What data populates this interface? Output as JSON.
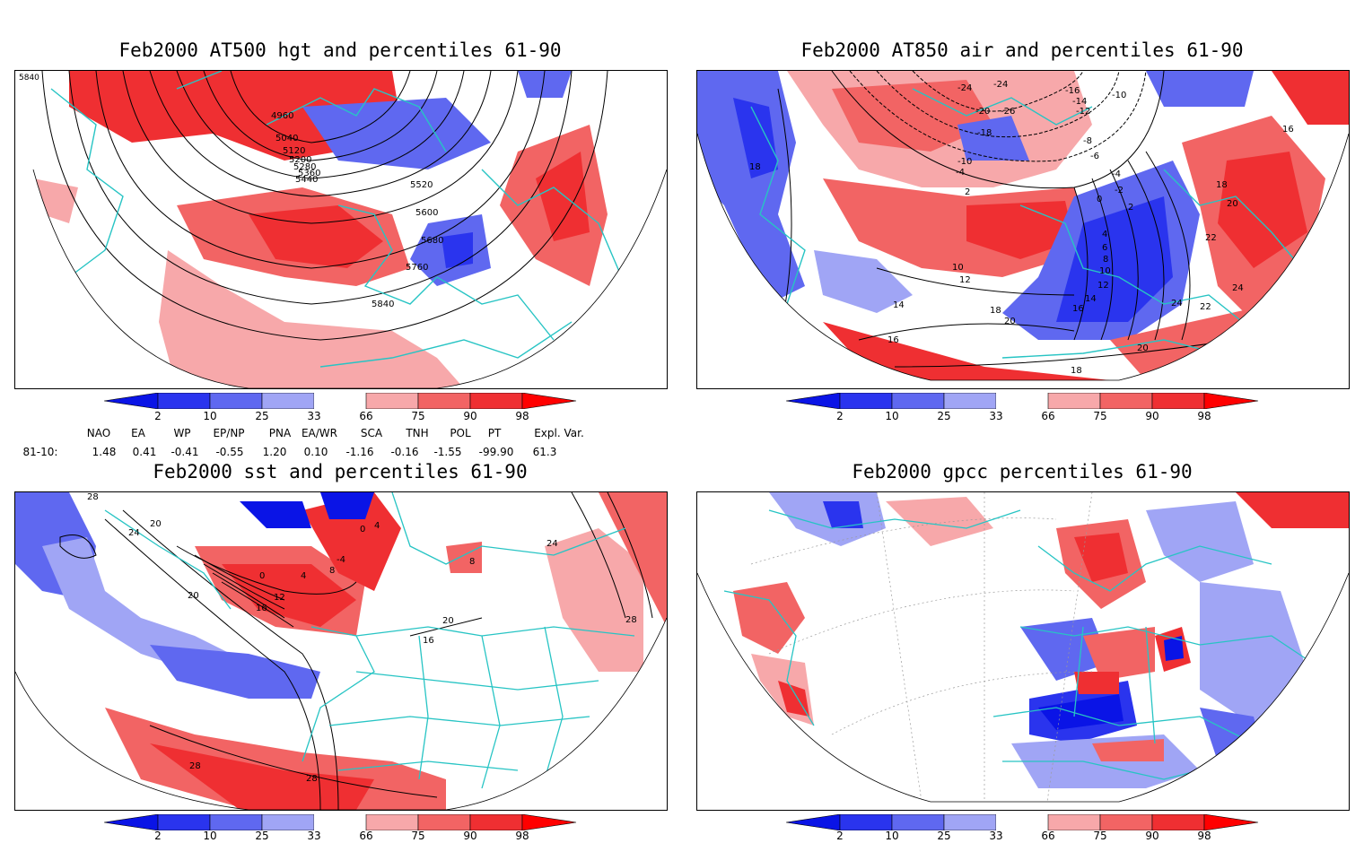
{
  "panels": [
    {
      "id": "p1",
      "title": "Feb2000 AT500 hgt and percentiles 61-90",
      "contour_labels": [
        "4960",
        "5040",
        "5120",
        "5200",
        "5280",
        "5360",
        "5440",
        "5520",
        "5600",
        "5680",
        "5760",
        "5840"
      ],
      "corner_label": "5840"
    },
    {
      "id": "p2",
      "title": "Feb2000 AT850 air and percentiles 61-90",
      "contour_labels": [
        "-24",
        "-24",
        "-20",
        "-26",
        "-18",
        "-16",
        "-14",
        "-12",
        "-10",
        "-10",
        "-8",
        "-6",
        "-4",
        "-4",
        "-2",
        "0",
        "2",
        "2",
        "4",
        "6",
        "8",
        "10",
        "12",
        "14",
        "16",
        "18",
        "20",
        "22",
        "24",
        "24",
        "22",
        "20",
        "18",
        "16",
        "14",
        "16",
        "18",
        "10",
        "12",
        "18",
        "20"
      ]
    },
    {
      "id": "p3",
      "title": "Feb2000 sst and percentiles 61-90",
      "contour_labels": [
        "28",
        "24",
        "20",
        "20",
        "16",
        "12",
        "8",
        "4",
        "0",
        "-4",
        "0",
        "4",
        "8",
        "16",
        "24",
        "28",
        "28",
        "28",
        "20"
      ]
    },
    {
      "id": "p4",
      "title": "Feb2000 gpcc percentiles 61-90",
      "contour_labels": []
    }
  ],
  "colorbar": {
    "labels": [
      "2",
      "10",
      "25",
      "33",
      "66",
      "75",
      "90",
      "98"
    ],
    "colors": {
      "below2": "#0a14e6",
      "c2_10": "#2a34ee",
      "c10_25": "#5f68f0",
      "c25_33": "#a0a5f5",
      "c33_66": "#ffffff",
      "c66_75": "#f7a8aa",
      "c75_90": "#f26464",
      "c90_98": "#ef2f32",
      "above98": "#ff0000"
    }
  },
  "indices": {
    "headers": [
      "NAO",
      "EA",
      "WP",
      "EP/NP",
      "PNA",
      "EA/WR",
      "SCA",
      "TNH",
      "POL",
      "PT",
      "Expl. Var."
    ],
    "row_label": "81-10:",
    "values": [
      "1.48",
      "0.41",
      "-0.41",
      "-0.55",
      "1.20",
      "0.10",
      "-1.16",
      "-0.16",
      "-1.55",
      "-99.90",
      "61.3"
    ]
  },
  "style_colors": {
    "coast": "#27c4c4",
    "contour": "#000000",
    "grid": "#9a9a9a"
  }
}
